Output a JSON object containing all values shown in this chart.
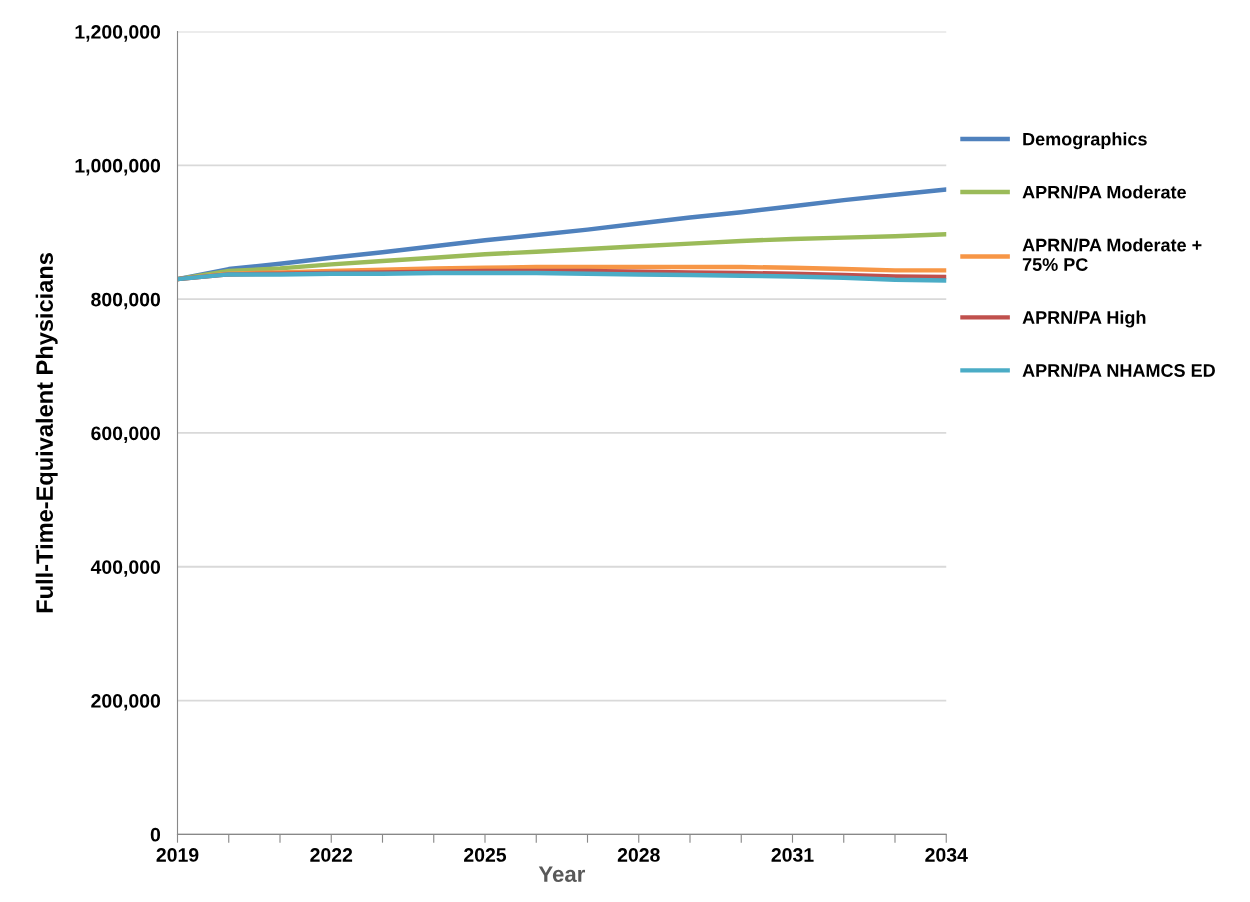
{
  "chart_data": {
    "type": "line",
    "xlabel": "Year",
    "ylabel": "Full-Time-Equivalent Physicians",
    "x": [
      2019,
      2020,
      2021,
      2022,
      2023,
      2024,
      2025,
      2026,
      2027,
      2028,
      2029,
      2030,
      2031,
      2032,
      2033,
      2034
    ],
    "series": [
      {
        "name": "Demographics",
        "color": "#4f81bd",
        "values": [
          830000,
          845000,
          853000,
          862000,
          870000,
          879000,
          888000,
          896000,
          904000,
          913000,
          922000,
          930000,
          939000,
          948000,
          956000,
          964000
        ]
      },
      {
        "name": "APRN/PA Moderate",
        "color": "#9bbb59",
        "values": [
          830000,
          842000,
          846000,
          852000,
          857000,
          862000,
          867000,
          871000,
          875000,
          879000,
          883000,
          887000,
          890000,
          892000,
          894000,
          897000
        ]
      },
      {
        "name": "APRN/PA Moderate + 75% PC",
        "color": "#f79646",
        "values": [
          830000,
          838000,
          840000,
          842000,
          844000,
          846000,
          847000,
          848000,
          848000,
          848000,
          848000,
          848000,
          847000,
          845000,
          843000,
          843000
        ]
      },
      {
        "name": "APRN/PA High",
        "color": "#c0504d",
        "values": [
          830000,
          837000,
          838000,
          839000,
          840000,
          841000,
          842000,
          842000,
          842000,
          841000,
          840000,
          839000,
          838000,
          836000,
          834000,
          833000
        ]
      },
      {
        "name": "APRN/PA NHAMCS ED",
        "color": "#4bacc6",
        "values": [
          830000,
          837000,
          837000,
          838000,
          838000,
          839000,
          839000,
          839000,
          838000,
          837000,
          836000,
          835000,
          834000,
          832000,
          829000,
          828000
        ]
      }
    ],
    "xlim": [
      2019,
      2034
    ],
    "xticks": [
      2019,
      {
        "value": 2020,
        "label": null
      },
      {
        "value": 2021,
        "label": null
      },
      2022,
      {
        "value": 2023,
        "label": null
      },
      {
        "value": 2024,
        "label": null
      },
      2025,
      {
        "value": 2026,
        "label": null
      },
      {
        "value": 2027,
        "label": null
      },
      2028,
      {
        "value": 2029,
        "label": null
      },
      {
        "value": 2030,
        "label": null
      },
      2031,
      {
        "value": 2032,
        "label": null
      },
      {
        "value": 2033,
        "label": null
      },
      2034
    ],
    "ylim": [
      0,
      1200000
    ],
    "yticks": [
      0,
      {
        "value": 200000,
        "label": "200,000"
      },
      {
        "value": 400000,
        "label": "400,000"
      },
      {
        "value": 600000,
        "label": "600,000"
      },
      {
        "value": 800000,
        "label": "800,000"
      },
      {
        "value": 1000000,
        "label": "1,000,000"
      },
      {
        "value": 1200000,
        "label": "1,200,000"
      }
    ],
    "grid": "y",
    "legend": "right",
    "marker": "none",
    "line_style": "solid"
  }
}
